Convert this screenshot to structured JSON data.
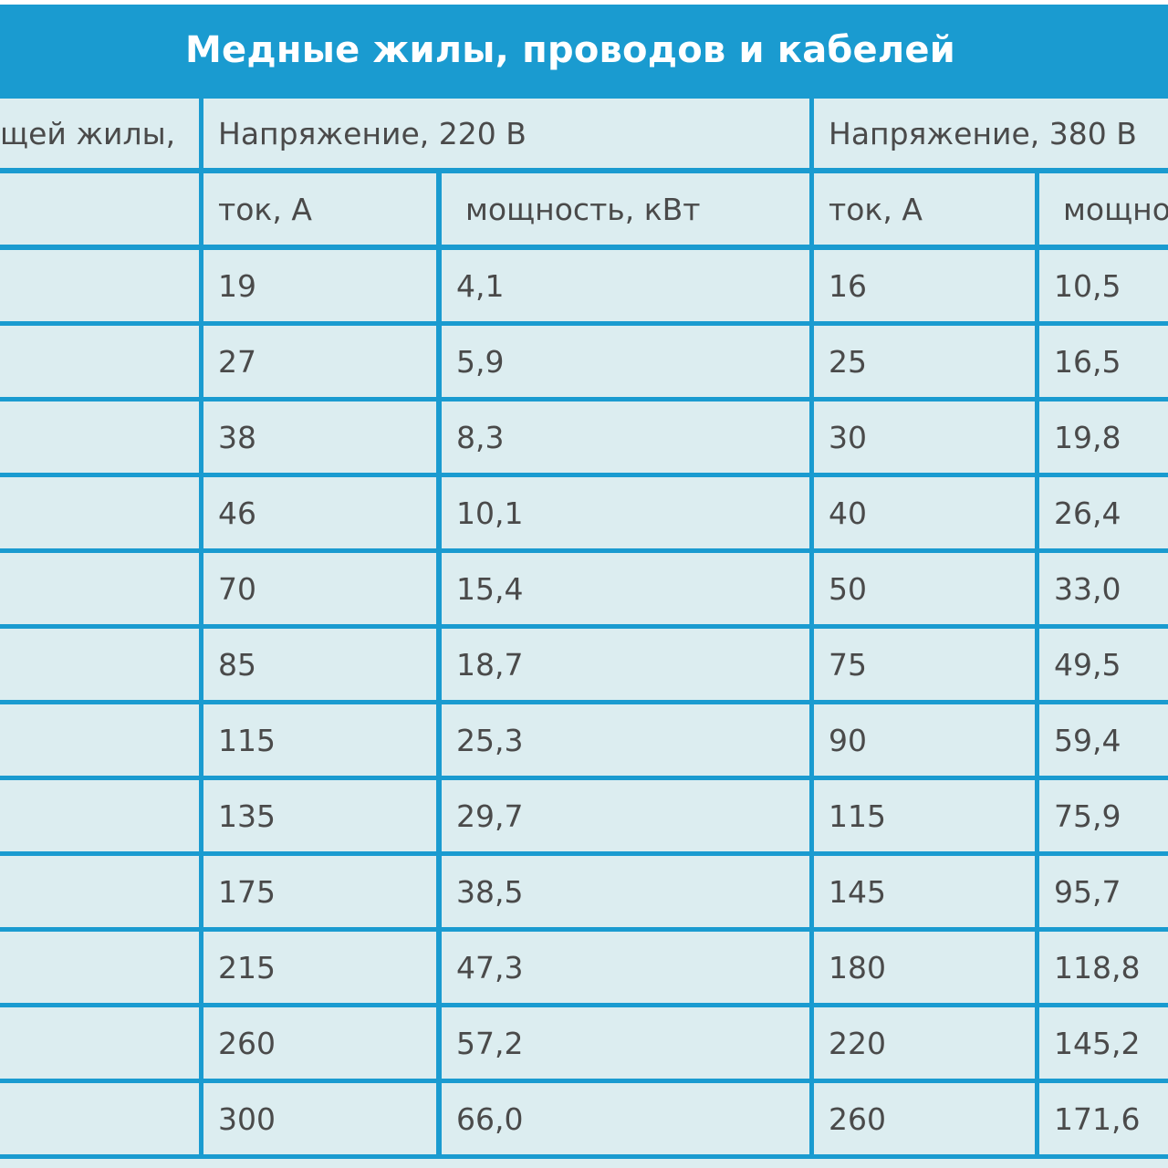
{
  "title": "Медные жилы, проводов и кабелей",
  "header": {
    "section_col": "щей жилы,",
    "voltage_220": "Напряжение, 220 В",
    "voltage_380": "Напряжение, 380 В"
  },
  "subheader": {
    "current_220": "ток, А",
    "power_220": "мощность, кВт",
    "current_380": "ток, А",
    "power_380": "мощно"
  },
  "rows": [
    {
      "i220": "19",
      "p220": "4,1",
      "i380": "16",
      "p380": "10,5"
    },
    {
      "i220": "27",
      "p220": "5,9",
      "i380": "25",
      "p380": "16,5"
    },
    {
      "i220": "38",
      "p220": "8,3",
      "i380": "30",
      "p380": "19,8"
    },
    {
      "i220": "46",
      "p220": "10,1",
      "i380": "40",
      "p380": "26,4"
    },
    {
      "i220": "70",
      "p220": "15,4",
      "i380": "50",
      "p380": "33,0"
    },
    {
      "i220": "85",
      "p220": "18,7",
      "i380": "75",
      "p380": "49,5"
    },
    {
      "i220": "115",
      "p220": "25,3",
      "i380": "90",
      "p380": "59,4"
    },
    {
      "i220": "135",
      "p220": "29,7",
      "i380": "115",
      "p380": "75,9"
    },
    {
      "i220": "175",
      "p220": "38,5",
      "i380": "145",
      "p380": "95,7"
    },
    {
      "i220": "215",
      "p220": "47,3",
      "i380": "180",
      "p380": "118,8"
    },
    {
      "i220": "260",
      "p220": "57,2",
      "i380": "220",
      "p380": "145,2"
    },
    {
      "i220": "300",
      "p220": "66,0",
      "i380": "260",
      "p380": "171,6"
    }
  ]
}
